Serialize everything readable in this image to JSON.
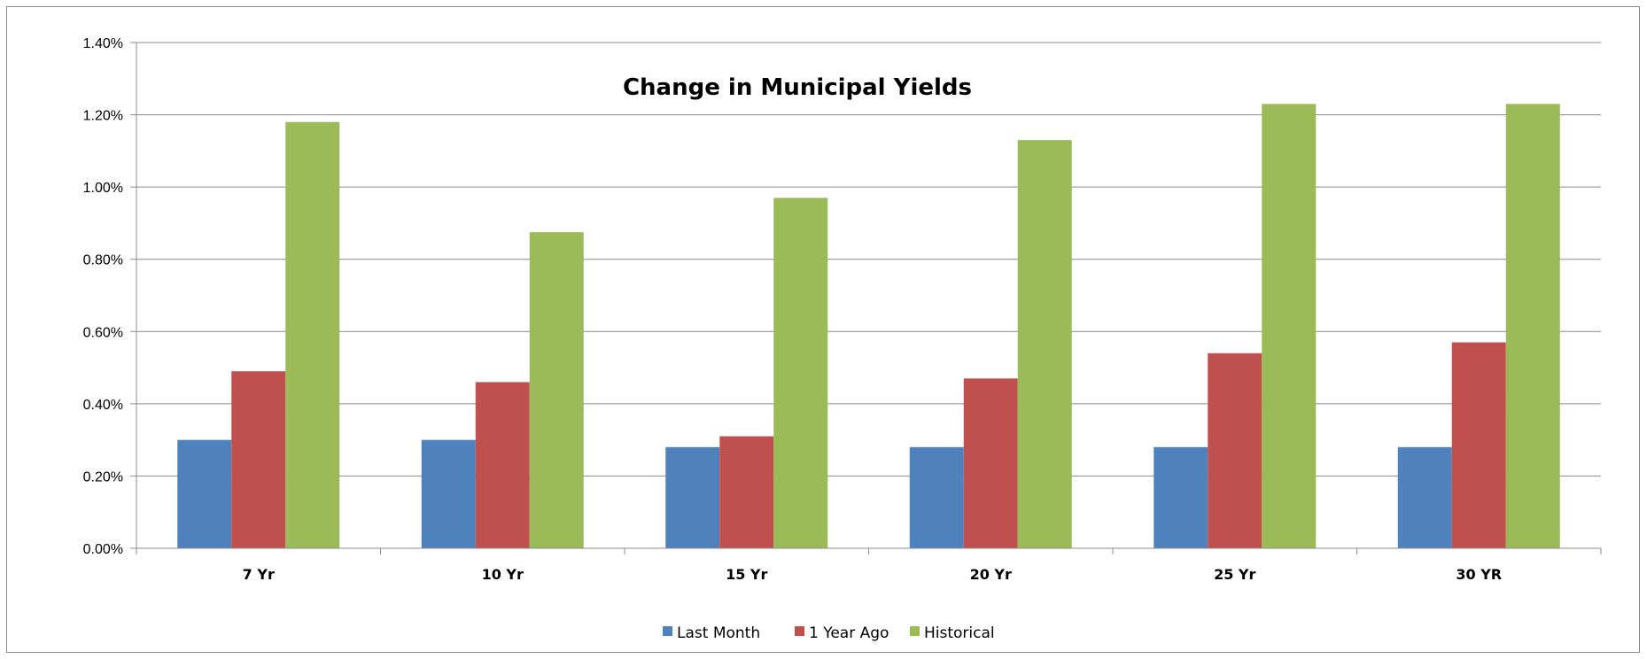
{
  "chart_data": {
    "type": "bar",
    "title": "Change in Municipal Yields",
    "xlabel": "",
    "ylabel": "",
    "categories": [
      "7 Yr",
      "10 Yr",
      "15 Yr",
      "20 Yr",
      "25 Yr",
      "30 YR"
    ],
    "series": [
      {
        "name": "Last Month",
        "color": "#4F81BD",
        "values": [
          0.3,
          0.3,
          0.28,
          0.28,
          0.28,
          0.28
        ]
      },
      {
        "name": "1 Year Ago",
        "color": "#C0504D",
        "values": [
          0.49,
          0.46,
          0.31,
          0.47,
          0.54,
          0.57
        ]
      },
      {
        "name": "Historical",
        "color": "#9BBB59",
        "values": [
          1.18,
          0.875,
          0.97,
          1.13,
          1.23,
          1.23
        ]
      }
    ],
    "ylim": [
      0,
      1.4
    ],
    "yticks": [
      "0.00%",
      "0.20%",
      "0.40%",
      "0.60%",
      "0.80%",
      "1.00%",
      "1.20%",
      "1.40%"
    ],
    "grid": true,
    "legend_position": "bottom"
  }
}
